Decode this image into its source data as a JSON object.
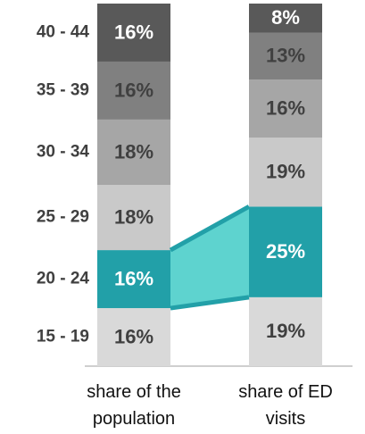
{
  "chart_data": {
    "type": "stacked_bar",
    "categories": [
      "share of the\npopulation",
      "share of ED\nvisits"
    ],
    "ylim": [
      0,
      100
    ],
    "series": [
      {
        "name": "15 - 19",
        "color": "#d9d9d9",
        "label_color": "#404040",
        "values": [
          16,
          19
        ],
        "value_labels": [
          "16%",
          "19%"
        ]
      },
      {
        "name": "20 - 24",
        "color": "#22a0a8",
        "label_color": "#ffffff",
        "band_color": "#5ed3cf",
        "values": [
          16,
          25
        ],
        "value_labels": [
          "16%",
          "25%"
        ]
      },
      {
        "name": "25 - 29",
        "color": "#c9c9c9",
        "label_color": "#404040",
        "values": [
          18,
          19
        ],
        "value_labels": [
          "18%",
          "19%"
        ]
      },
      {
        "name": "30 - 34",
        "color": "#a6a6a6",
        "label_color": "#404040",
        "values": [
          18,
          16
        ],
        "value_labels": [
          "18%",
          "16%"
        ]
      },
      {
        "name": "35 - 39",
        "color": "#808080",
        "label_color": "#404040",
        "values": [
          16,
          13
        ],
        "value_labels": [
          "16%",
          "13%"
        ]
      },
      {
        "name": "40 - 44",
        "color": "#595959",
        "label_color": "#ffffff",
        "values": [
          16,
          8
        ],
        "value_labels": [
          "16%",
          "8%"
        ]
      }
    ]
  }
}
